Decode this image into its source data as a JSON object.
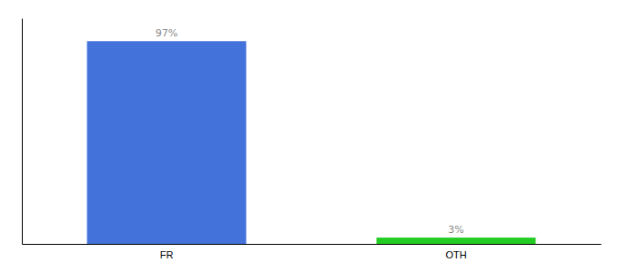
{
  "chart_data": {
    "type": "bar",
    "categories": [
      "FR",
      "OTH"
    ],
    "values": [
      97,
      3
    ],
    "value_labels": [
      "97%",
      "3%"
    ],
    "data_labels": true,
    "colors": [
      "#4472db",
      "#22cc22"
    ],
    "ylim": [
      0,
      108
    ],
    "tick_labels": "x"
  }
}
